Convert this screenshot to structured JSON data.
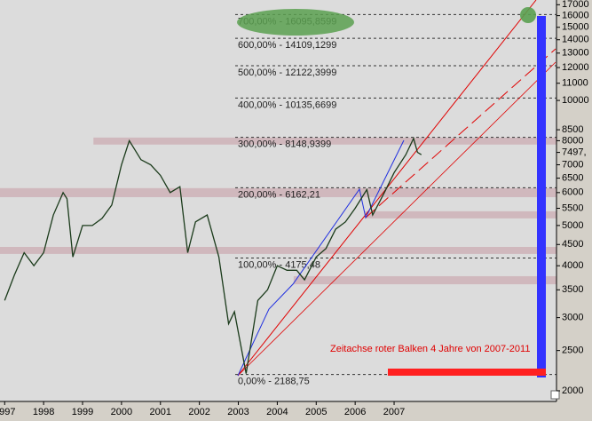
{
  "chart_data": {
    "type": "line",
    "log_scale": true,
    "color": "#1a3a1a",
    "xlim": [
      1996.88,
      2011.17
    ],
    "ylim": [
      1885,
      17450
    ],
    "xticks": [
      1997,
      1998,
      1999,
      2000,
      2001,
      2002,
      2003,
      2004,
      2005,
      2006,
      2007
    ],
    "yticks": [
      2000,
      2500,
      3000,
      3500,
      4000,
      4500,
      5000,
      5500,
      6000,
      6500,
      7000,
      {
        "value": 7497,
        "label": "7497,"
      },
      8000,
      8500,
      10000,
      11000,
      12000,
      13000,
      14000,
      15000,
      16000,
      17000
    ],
    "x": [
      1997.0,
      1997.25,
      1997.5,
      1997.75,
      1998.0,
      1998.25,
      1998.5,
      1998.6,
      1998.75,
      1999.0,
      1999.25,
      1999.5,
      1999.75,
      2000.0,
      2000.2,
      2000.5,
      2000.75,
      2001.0,
      2001.25,
      2001.5,
      2001.7,
      2001.9,
      2002.2,
      2002.5,
      2002.75,
      2002.9,
      2003.2,
      2003.5,
      2003.75,
      2004.0,
      2004.25,
      2004.5,
      2004.7,
      2005.0,
      2005.25,
      2005.5,
      2005.75,
      2006.0,
      2006.3,
      2006.45,
      2006.75,
      2007.0,
      2007.3,
      2007.5,
      2007.6,
      2007.7
    ],
    "values": [
      3300,
      3800,
      4300,
      4000,
      4300,
      5300,
      6000,
      5800,
      4200,
      5000,
      5000,
      5200,
      5600,
      7000,
      8000,
      7200,
      7000,
      6600,
      6000,
      6200,
      4300,
      5100,
      5300,
      4200,
      2900,
      3100,
      2200,
      3300,
      3500,
      4000,
      3900,
      3900,
      3700,
      4200,
      4400,
      4900,
      5100,
      5500,
      6100,
      5300,
      6000,
      6700,
      7400,
      8100,
      7500,
      7400
    ],
    "levels": [
      {
        "value": 16095.8599,
        "label": "700,00% - 16095,8599"
      },
      {
        "value": 14109.1299,
        "label": "600,00% - 14109,1299"
      },
      {
        "value": 12122.3999,
        "label": "500,00% - 12122,3999"
      },
      {
        "value": 10135.6699,
        "label": "400,00% - 10135,6699"
      },
      {
        "value": 8148.9399,
        "label": "300,00% - 8148,9399"
      },
      {
        "value": 6162.21,
        "label": "200,00% - 6162,21"
      },
      {
        "value": 4175.48,
        "label": "100,00% - 4175,48"
      },
      {
        "value": 2188.75,
        "label": "0,00% - 2188,75"
      }
    ],
    "zones": [
      {
        "from": 7830,
        "to": 8140,
        "start": 1999.28
      },
      {
        "from": 5850,
        "to": 6150,
        "start": 1996.88
      },
      {
        "from": 5200,
        "to": 5410,
        "start": 2006.24
      },
      {
        "from": 4270,
        "to": 4440,
        "start": 1996.88
      },
      {
        "from": 3610,
        "to": 3775,
        "start": 2004.42
      }
    ],
    "annotation": "Zeitachse roter Balken 4 Jahre von 2007-2011"
  }
}
